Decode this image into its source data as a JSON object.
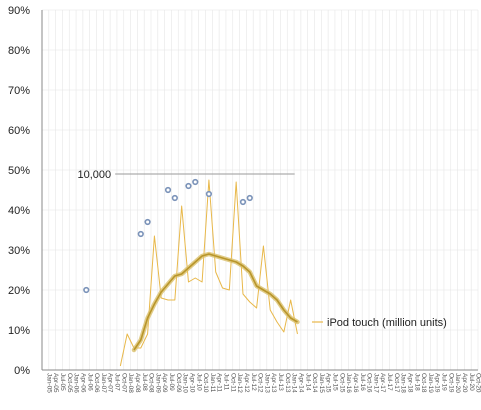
{
  "chart_data": {
    "type": "line",
    "legend": {
      "label": "iPod touch (million units)",
      "placement": "right"
    },
    "ylim": [
      0,
      0.9
    ],
    "yticks": [
      "0%",
      "10%",
      "20%",
      "30%",
      "40%",
      "50%",
      "60%",
      "70%",
      "80%",
      "90%"
    ],
    "grid": true,
    "x": [
      "Jan-05",
      "Apr-05",
      "Jul-05",
      "Oct-05",
      "Jan-06",
      "Apr-06",
      "Jul-06",
      "Oct-06",
      "Jan-07",
      "Apr-07",
      "Jul-07",
      "Oct-07",
      "Jan-08",
      "Apr-08",
      "Jul-08",
      "Oct-08",
      "Jan-09",
      "Apr-09",
      "Jul-09",
      "Oct-09",
      "Jan-10",
      "Apr-10",
      "Jul-10",
      "Oct-10",
      "Jan-11",
      "Apr-11",
      "Jul-11",
      "Oct-11",
      "Jan-12",
      "Apr-12",
      "Jul-12",
      "Oct-12",
      "Jan-13",
      "Apr-13",
      "Jul-13",
      "Oct-13",
      "Jan-14",
      "Apr-14",
      "Jul-14",
      "Oct-14",
      "Jan-15",
      "Apr-15",
      "Jul-15",
      "Oct-15",
      "Jan-16",
      "Apr-16",
      "Jul-16",
      "Oct-16",
      "Jan-17",
      "Apr-17",
      "Jul-17",
      "Oct-17",
      "Jan-18",
      "Apr-18",
      "Jul-18",
      "Oct-18",
      "Jan-19",
      "Apr-19",
      "Jul-19",
      "Oct-19",
      "Jan-20",
      "Apr-20",
      "Jul-20",
      "Oct-20"
    ],
    "annotation": {
      "label": "10,000",
      "y": 0.49,
      "x_start": "Jan-08",
      "x_end": "Jan-14"
    },
    "series": [
      {
        "name": "iPod touch (million units)",
        "style": "thin",
        "color": "#e8b84a",
        "points": [
          [
            "Oct-07",
            0.01
          ],
          [
            "Jan-08",
            0.09
          ],
          [
            "Apr-08",
            0.055
          ],
          [
            "Jul-08",
            0.055
          ],
          [
            "Oct-08",
            0.09
          ],
          [
            "Jan-09",
            0.335
          ],
          [
            "Apr-09",
            0.18
          ],
          [
            "Jul-09",
            0.175
          ],
          [
            "Oct-09",
            0.175
          ],
          [
            "Jan-10",
            0.41
          ],
          [
            "Apr-10",
            0.22
          ],
          [
            "Jul-10",
            0.23
          ],
          [
            "Oct-10",
            0.22
          ],
          [
            "Jan-11",
            0.475
          ],
          [
            "Apr-11",
            0.245
          ],
          [
            "Jul-11",
            0.205
          ],
          [
            "Oct-11",
            0.2
          ],
          [
            "Jan-12",
            0.47
          ],
          [
            "Apr-12",
            0.19
          ],
          [
            "Jul-12",
            0.17
          ],
          [
            "Oct-12",
            0.155
          ],
          [
            "Jan-13",
            0.31
          ],
          [
            "Apr-13",
            0.15
          ],
          [
            "Jul-13",
            0.12
          ],
          [
            "Oct-13",
            0.095
          ],
          [
            "Jan-14",
            0.175
          ],
          [
            "Apr-14",
            0.09
          ]
        ]
      },
      {
        "name": "",
        "style": "thick",
        "color": "#b8952a",
        "points": [
          [
            "Apr-08",
            0.05
          ],
          [
            "Jul-08",
            0.075
          ],
          [
            "Oct-08",
            0.13
          ],
          [
            "Jan-09",
            0.165
          ],
          [
            "Apr-09",
            0.195
          ],
          [
            "Jul-09",
            0.215
          ],
          [
            "Oct-09",
            0.235
          ],
          [
            "Jan-10",
            0.24
          ],
          [
            "Apr-10",
            0.255
          ],
          [
            "Jul-10",
            0.27
          ],
          [
            "Oct-10",
            0.285
          ],
          [
            "Jan-11",
            0.29
          ],
          [
            "Apr-11",
            0.285
          ],
          [
            "Jul-11",
            0.28
          ],
          [
            "Oct-11",
            0.275
          ],
          [
            "Jan-12",
            0.27
          ],
          [
            "Apr-12",
            0.26
          ],
          [
            "Jul-12",
            0.245
          ],
          [
            "Oct-12",
            0.21
          ],
          [
            "Jan-13",
            0.2
          ],
          [
            "Apr-13",
            0.19
          ],
          [
            "Jul-13",
            0.175
          ],
          [
            "Oct-13",
            0.15
          ],
          [
            "Jan-14",
            0.13
          ],
          [
            "Apr-14",
            0.12
          ]
        ]
      },
      {
        "name": "",
        "style": "markers",
        "color": "#7b93b9",
        "points": [
          [
            "Jul-06",
            0.2
          ],
          [
            "Jul-08",
            0.34
          ],
          [
            "Oct-08",
            0.37
          ],
          [
            "Jul-09",
            0.45
          ],
          [
            "Oct-09",
            0.43
          ],
          [
            "Apr-10",
            0.46
          ],
          [
            "Jul-10",
            0.47
          ],
          [
            "Jan-11",
            0.44
          ],
          [
            "Apr-12",
            0.42
          ],
          [
            "Jul-12",
            0.43
          ]
        ]
      }
    ]
  }
}
